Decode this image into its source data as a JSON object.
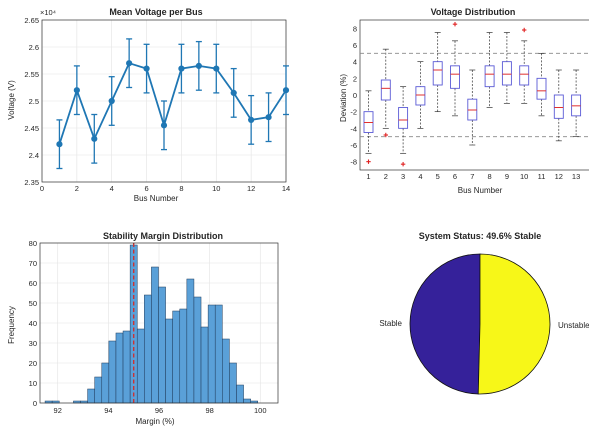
{
  "chart_data": [
    {
      "type": "line",
      "title": "Mean Voltage per Bus",
      "xlabel": "Bus Number",
      "ylabel": "Voltage (V)",
      "y_exponent_label": "×10⁴",
      "xlim": [
        0,
        14
      ],
      "ylim": [
        2.35,
        2.65
      ],
      "xticks": [
        0,
        2,
        4,
        6,
        8,
        10,
        12,
        14
      ],
      "yticks": [
        "2.35",
        "2.4",
        "2.45",
        "2.5",
        "2.55",
        "2.6",
        "2.65"
      ],
      "grid": true,
      "color": "#1f77b4",
      "x": [
        1,
        2,
        3,
        4,
        5,
        6,
        7,
        8,
        9,
        10,
        11,
        12,
        13,
        14
      ],
      "values": [
        2.42,
        2.52,
        2.43,
        2.5,
        2.57,
        2.56,
        2.455,
        2.56,
        2.565,
        2.56,
        2.515,
        2.465,
        2.47,
        2.52
      ],
      "error": [
        0.045,
        0.045,
        0.045,
        0.045,
        0.045,
        0.045,
        0.045,
        0.045,
        0.045,
        0.045,
        0.045,
        0.045,
        0.045,
        0.045
      ]
    },
    {
      "type": "box",
      "title": "Voltage Distribution",
      "xlabel": "Bus Number",
      "ylabel": "Deviation (%)",
      "ylim": [
        -9,
        9
      ],
      "yticks": [
        -8,
        -6,
        -4,
        -2,
        0,
        2,
        4,
        6,
        8
      ],
      "categories": [
        "1",
        "2",
        "3",
        "4",
        "5",
        "6",
        "7",
        "8",
        "9",
        "10",
        "11",
        "12",
        "13"
      ],
      "reference_lines": [
        5,
        -5
      ],
      "box_color": "#5a5ad6",
      "median_color": "#e03030",
      "outlier_color": "#e02020",
      "boxes": [
        {
          "min": -7.0,
          "q1": -4.5,
          "median": -3.3,
          "q3": -2.0,
          "max": 0.5,
          "outliers": [
            -8.0
          ]
        },
        {
          "min": -4.0,
          "q1": -0.6,
          "median": 0.8,
          "q3": 1.8,
          "max": 5.5,
          "outliers": [
            -4.8
          ]
        },
        {
          "min": -7.0,
          "q1": -4.0,
          "median": -3.0,
          "q3": -1.5,
          "max": 1.0,
          "outliers": [
            -8.3
          ]
        },
        {
          "min": -4.0,
          "q1": -1.2,
          "median": 0.0,
          "q3": 1.0,
          "max": 4.0,
          "outliers": []
        },
        {
          "min": -2.0,
          "q1": 1.2,
          "median": 3.0,
          "q3": 4.0,
          "max": 7.5,
          "outliers": []
        },
        {
          "min": -2.5,
          "q1": 0.8,
          "median": 2.5,
          "q3": 3.5,
          "max": 6.5,
          "outliers": [
            8.5
          ]
        },
        {
          "min": -6.0,
          "q1": -3.0,
          "median": -1.8,
          "q3": -0.5,
          "max": 3.0,
          "outliers": []
        },
        {
          "min": -1.5,
          "q1": 1.0,
          "median": 2.5,
          "q3": 3.5,
          "max": 7.5,
          "outliers": []
        },
        {
          "min": -1.0,
          "q1": 1.2,
          "median": 2.5,
          "q3": 4.0,
          "max": 7.5,
          "outliers": []
        },
        {
          "min": -1.0,
          "q1": 1.2,
          "median": 2.5,
          "q3": 3.5,
          "max": 6.5,
          "outliers": [
            7.8
          ]
        },
        {
          "min": -2.5,
          "q1": -0.5,
          "median": 0.5,
          "q3": 2.0,
          "max": 5.0,
          "outliers": []
        },
        {
          "min": -5.5,
          "q1": -2.8,
          "median": -1.5,
          "q3": 0.0,
          "max": 3.0,
          "outliers": []
        },
        {
          "min": -5.0,
          "q1": -2.5,
          "median": -1.3,
          "q3": 0.0,
          "max": 3.0,
          "outliers": []
        }
      ]
    },
    {
      "type": "histogram",
      "title": "Stability Margin Distribution",
      "xlabel": "Margin (%)",
      "ylabel": "Frequency",
      "xlim": [
        91.3,
        100.7
      ],
      "ylim": [
        0,
        80
      ],
      "xticks": [
        92,
        94,
        96,
        98,
        100
      ],
      "yticks": [
        0,
        10,
        20,
        30,
        40,
        50,
        60,
        70,
        80
      ],
      "grid": true,
      "bar_color": "#5aa0d8",
      "bin_start": 91.5,
      "bin_width": 0.28,
      "values": [
        1,
        1,
        0,
        0,
        1,
        1,
        7,
        13,
        20,
        31,
        35,
        36,
        79,
        37,
        54,
        68,
        58,
        42,
        46,
        47,
        62,
        53,
        38,
        49,
        49,
        32,
        20,
        9,
        2,
        1
      ],
      "reference_line": {
        "x": 95.0,
        "color": "#cc3333",
        "style": "dashed"
      }
    },
    {
      "type": "pie",
      "title": "System Status: 49.6% Stable",
      "categories": [
        "Stable",
        "Unstable"
      ],
      "values": [
        49.6,
        50.4
      ],
      "colors": [
        "#35219a",
        "#f7f718"
      ]
    }
  ]
}
